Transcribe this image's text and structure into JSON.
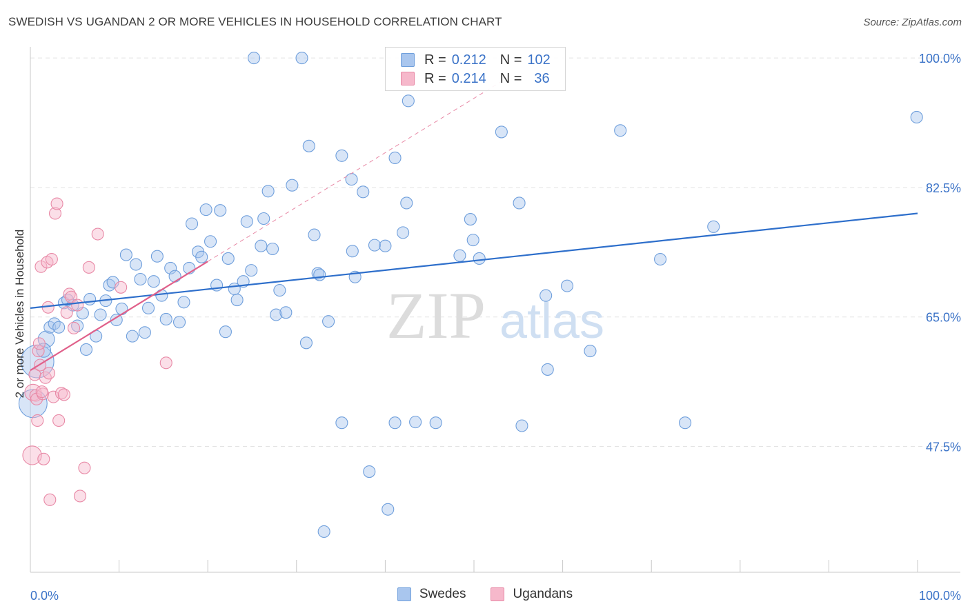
{
  "title": "SWEDISH VS UGANDAN 2 OR MORE VEHICLES IN HOUSEHOLD CORRELATION CHART",
  "source": "Source: ZipAtlas.com",
  "watermark": {
    "zip": "ZIP",
    "atlas": "atlas"
  },
  "colors": {
    "swedes_fill": "#a9c6ee",
    "swedes_stroke": "#6f9fdc",
    "swedes_line": "#2e6fcb",
    "ugandans_fill": "#f6b8cb",
    "ugandans_stroke": "#e889a6",
    "ugandans_line": "#e0608a",
    "tick_label": "#3b73c8",
    "grid": "#e3e3e3"
  },
  "legend": {
    "rows": [
      {
        "r_label": "R =",
        "r_value": "0.212",
        "n_label": "N =",
        "n_value": "102"
      },
      {
        "r_label": "R =",
        "r_value": "0.214",
        "n_label": "N =",
        "n_value": "36"
      }
    ]
  },
  "bottom_legend": {
    "series1": "Swedes",
    "series2": "Ugandans"
  },
  "chart_data": {
    "type": "scatter",
    "title": "SWEDISH VS UGANDAN 2 OR MORE VEHICLES IN HOUSEHOLD CORRELATION CHART",
    "xlabel": "",
    "ylabel": "2 or more Vehicles in Household",
    "xlim": [
      0,
      100
    ],
    "ylim": [
      30.5,
      101.5
    ],
    "x_tick_labels": [
      "0.0%",
      "100.0%"
    ],
    "y_ticks": [
      47.5,
      65.0,
      82.5,
      100.0
    ],
    "y_tick_labels": [
      "47.5%",
      "65.0%",
      "82.5%",
      "100.0%"
    ],
    "grid": "horizontal dashed",
    "legend_placement": "top-center",
    "series": [
      {
        "name": "Swedes",
        "r": 0.212,
        "n": 102,
        "trend": {
          "x": [
            0,
            100
          ],
          "y": [
            66.2,
            79.0
          ]
        },
        "points": [
          [
            0.8,
            59.0,
            28
          ],
          [
            0.3,
            53.3,
            24
          ],
          [
            1.8,
            62.0,
            14
          ],
          [
            1.5,
            60.5,
            12
          ],
          [
            2.2,
            63.6,
            10
          ],
          [
            2.7,
            64.1,
            10
          ],
          [
            3.2,
            63.6,
            10
          ],
          [
            3.8,
            66.9,
            10
          ],
          [
            4.2,
            67.3,
            10
          ],
          [
            4.8,
            66.6,
            10
          ],
          [
            5.3,
            63.8,
            10
          ],
          [
            5.9,
            65.5,
            10
          ],
          [
            6.3,
            60.6,
            10
          ],
          [
            6.7,
            67.4,
            10
          ],
          [
            7.4,
            62.4,
            10
          ],
          [
            7.9,
            65.3,
            10
          ],
          [
            8.5,
            67.2,
            10
          ],
          [
            8.9,
            69.3,
            10
          ],
          [
            9.3,
            69.7,
            10
          ],
          [
            9.7,
            64.6,
            10
          ],
          [
            10.3,
            66.1,
            10
          ],
          [
            10.8,
            73.4,
            10
          ],
          [
            11.5,
            62.4,
            10
          ],
          [
            11.9,
            72.1,
            10
          ],
          [
            12.4,
            70.1,
            10
          ],
          [
            12.9,
            62.9,
            10
          ],
          [
            13.3,
            66.2,
            10
          ],
          [
            13.9,
            69.8,
            10
          ],
          [
            14.3,
            73.2,
            10
          ],
          [
            14.8,
            67.9,
            10
          ],
          [
            15.3,
            64.7,
            10
          ],
          [
            15.8,
            71.6,
            10
          ],
          [
            16.3,
            70.5,
            10
          ],
          [
            16.8,
            64.3,
            10
          ],
          [
            17.3,
            67.0,
            10
          ],
          [
            17.9,
            71.6,
            10
          ],
          [
            18.2,
            77.6,
            10
          ],
          [
            18.9,
            73.8,
            10
          ],
          [
            19.3,
            73.1,
            10
          ],
          [
            19.8,
            79.5,
            10
          ],
          [
            20.3,
            75.2,
            10
          ],
          [
            21.0,
            69.3,
            10
          ],
          [
            21.4,
            79.4,
            10
          ],
          [
            22.0,
            63.0,
            10
          ],
          [
            22.3,
            72.9,
            10
          ],
          [
            23.0,
            68.8,
            10
          ],
          [
            23.3,
            67.3,
            10
          ],
          [
            24.0,
            69.8,
            10
          ],
          [
            24.4,
            77.9,
            10
          ],
          [
            24.9,
            71.3,
            10
          ],
          [
            25.2,
            100.0,
            10
          ],
          [
            26.0,
            74.6,
            10
          ],
          [
            26.3,
            78.3,
            10
          ],
          [
            26.8,
            82.0,
            10
          ],
          [
            27.3,
            74.2,
            10
          ],
          [
            27.7,
            65.3,
            10
          ],
          [
            28.1,
            68.6,
            10
          ],
          [
            28.8,
            65.6,
            10
          ],
          [
            29.5,
            82.8,
            10
          ],
          [
            30.6,
            100.0,
            10
          ],
          [
            31.1,
            61.5,
            10
          ],
          [
            31.4,
            88.1,
            10
          ],
          [
            32.0,
            76.1,
            10
          ],
          [
            32.4,
            70.9,
            10
          ],
          [
            32.6,
            70.7,
            10
          ],
          [
            33.1,
            36.0,
            10
          ],
          [
            33.6,
            64.4,
            10
          ],
          [
            35.1,
            86.8,
            10
          ],
          [
            35.1,
            50.7,
            10
          ],
          [
            36.2,
            83.6,
            10
          ],
          [
            36.3,
            73.9,
            10
          ],
          [
            36.6,
            70.4,
            10
          ],
          [
            37.5,
            81.9,
            10
          ],
          [
            38.2,
            44.1,
            10
          ],
          [
            38.8,
            74.7,
            10
          ],
          [
            40.0,
            74.6,
            10
          ],
          [
            40.3,
            39.0,
            10
          ],
          [
            41.1,
            86.5,
            10
          ],
          [
            41.1,
            50.7,
            10
          ],
          [
            42.0,
            76.4,
            10
          ],
          [
            42.4,
            80.4,
            10
          ],
          [
            42.6,
            94.2,
            10
          ],
          [
            43.4,
            50.8,
            10
          ],
          [
            45.7,
            50.7,
            10
          ],
          [
            48.4,
            73.3,
            10
          ],
          [
            49.6,
            78.2,
            10
          ],
          [
            49.9,
            75.4,
            10
          ],
          [
            50.6,
            72.9,
            10
          ],
          [
            53.1,
            90.0,
            10
          ],
          [
            55.1,
            80.4,
            10
          ],
          [
            55.4,
            50.3,
            10
          ],
          [
            58.1,
            67.9,
            10
          ],
          [
            58.3,
            57.9,
            10
          ],
          [
            60.5,
            69.2,
            10
          ],
          [
            63.1,
            60.4,
            10
          ],
          [
            66.5,
            90.2,
            10
          ],
          [
            71.0,
            72.8,
            10
          ],
          [
            73.8,
            50.7,
            10
          ],
          [
            77.0,
            77.2,
            10
          ],
          [
            99.9,
            92.0,
            10
          ]
        ]
      },
      {
        "name": "Ugandans",
        "r": 0.214,
        "n": 36,
        "trend": {
          "x": [
            0,
            20
          ],
          "y": [
            57.8,
            72.5
          ]
        },
        "points": [
          [
            0.2,
            46.3,
            16
          ],
          [
            0.3,
            54.8,
            14
          ],
          [
            0.5,
            57.2,
            10
          ],
          [
            0.6,
            54.4,
            10
          ],
          [
            0.7,
            53.9,
            10
          ],
          [
            0.8,
            51.0,
            10
          ],
          [
            0.9,
            60.4,
            10
          ],
          [
            1.0,
            61.4,
            10
          ],
          [
            1.1,
            58.5,
            10
          ],
          [
            1.2,
            71.8,
            10
          ],
          [
            1.4,
            54.6,
            10
          ],
          [
            1.5,
            45.8,
            10
          ],
          [
            1.7,
            56.8,
            10
          ],
          [
            1.9,
            72.4,
            10
          ],
          [
            2.0,
            66.3,
            10
          ],
          [
            2.1,
            57.4,
            10
          ],
          [
            2.2,
            40.3,
            10
          ],
          [
            2.4,
            72.8,
            10
          ],
          [
            2.6,
            54.2,
            10
          ],
          [
            2.8,
            79.0,
            10
          ],
          [
            3.0,
            80.3,
            10
          ],
          [
            3.2,
            51.0,
            10
          ],
          [
            3.5,
            54.7,
            10
          ],
          [
            3.8,
            54.5,
            10
          ],
          [
            4.1,
            65.6,
            10
          ],
          [
            4.4,
            68.1,
            10
          ],
          [
            4.6,
            67.7,
            10
          ],
          [
            4.9,
            63.5,
            10
          ],
          [
            5.3,
            66.6,
            10
          ],
          [
            5.6,
            40.8,
            10
          ],
          [
            6.1,
            44.6,
            10
          ],
          [
            6.6,
            71.7,
            10
          ],
          [
            7.6,
            76.2,
            10
          ],
          [
            10.2,
            69.0,
            10
          ],
          [
            15.3,
            58.8,
            10
          ],
          [
            1.3,
            54.9,
            10
          ]
        ]
      }
    ]
  }
}
